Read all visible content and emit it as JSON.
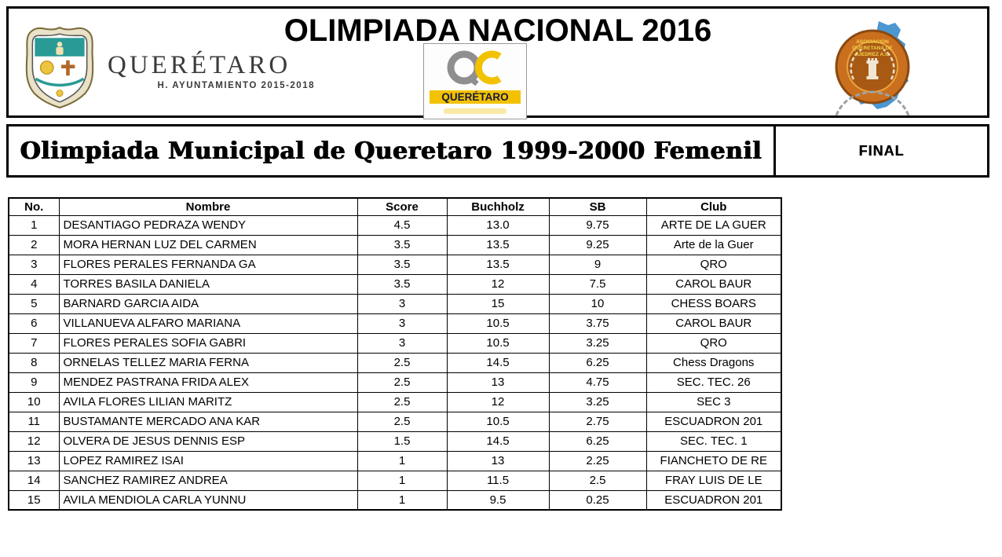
{
  "header": {
    "title": "OLIMPIADA NACIONAL 2016",
    "municipality_logo": {
      "wordmark": "QUERÉTARO",
      "subtitle": "H. AYUNTAMIENTO 2015-2018"
    },
    "city_logo": {
      "wordmark": "QUERÉTARO"
    },
    "chess_association_logo": {
      "line1": "ASOCIACIÓN",
      "line2": "QUERETANA DE",
      "line3": "AJEDREZ A.C."
    }
  },
  "subheader": {
    "event_title": "Olimpiada Municipal de Queretaro 1999-2000 Femenil",
    "stage": "FINAL"
  },
  "table": {
    "columns": [
      "No.",
      "Nombre",
      "Score",
      "Buchholz",
      "SB",
      "Club"
    ],
    "column_keys": [
      "no",
      "nombre",
      "score",
      "buchholz",
      "sb",
      "club"
    ],
    "rows": [
      [
        "1",
        "DESANTIAGO PEDRAZA WENDY",
        "4.5",
        "13.0",
        "9.75",
        "ARTE DE LA GUER"
      ],
      [
        "2",
        "MORA HERNAN LUZ DEL CARMEN",
        "3.5",
        "13.5",
        "9.25",
        "Arte de la Guer"
      ],
      [
        "3",
        "FLORES PERALES FERNANDA GA",
        "3.5",
        "13.5",
        "9",
        "QRO"
      ],
      [
        "4",
        "TORRES BASILA DANIELA",
        "3.5",
        "12",
        "7.5",
        "CAROL BAUR"
      ],
      [
        "5",
        "BARNARD GARCIA AIDA",
        "3",
        "15",
        "10",
        "CHESS BOARS"
      ],
      [
        "6",
        "VILLANUEVA ALFARO MARIANA",
        "3",
        "10.5",
        "3.75",
        "CAROL BAUR"
      ],
      [
        "7",
        "FLORES PERALES SOFIA GABRI",
        "3",
        "10.5",
        "3.25",
        "QRO"
      ],
      [
        "8",
        "ORNELAS TELLEZ MARIA FERNA",
        "2.5",
        "14.5",
        "6.25",
        "Chess Dragons"
      ],
      [
        "9",
        "MENDEZ PASTRANA FRIDA ALEX",
        "2.5",
        "13",
        "4.75",
        "SEC. TEC. 26"
      ],
      [
        "10",
        "AVILA FLORES LILIAN MARITZ",
        "2.5",
        "12",
        "3.25",
        "SEC 3"
      ],
      [
        "11",
        "BUSTAMANTE MERCADO ANA KAR",
        "2.5",
        "10.5",
        "2.75",
        "ESCUADRON 201"
      ],
      [
        "12",
        "OLVERA DE JESUS DENNIS ESP",
        "1.5",
        "14.5",
        "6.25",
        "SEC. TEC. 1"
      ],
      [
        "13",
        "LOPEZ RAMIREZ ISAI",
        "1",
        "13",
        "2.25",
        "FIANCHETO DE RE"
      ],
      [
        "14",
        "SANCHEZ RAMIREZ ANDREA",
        "1",
        "11.5",
        "2.5",
        "FRAY LUIS DE LE"
      ],
      [
        "15",
        "AVILA MENDIOLA CARLA YUNNU",
        "1",
        "9.5",
        "0.25",
        "ESCUADRON 201"
      ]
    ]
  },
  "colors": {
    "border": "#000000",
    "map_blue": "#4a97d2",
    "medal_orange": "#c96f1e",
    "medal_dark": "#a85a14",
    "logo_yellow": "#f2c200",
    "shield_teal": "#2a9a96"
  }
}
